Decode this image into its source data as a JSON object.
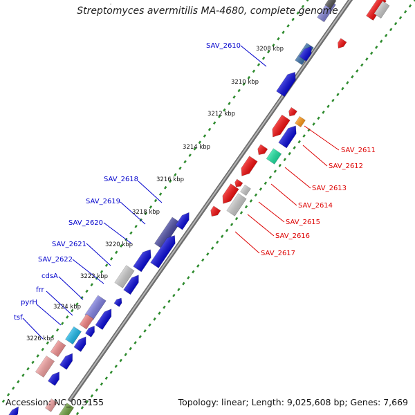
{
  "title": "Streptomyces avermitilis MA-4680, complete genome",
  "accession": "Accession: NC_003155",
  "summary": "Topology: linear; Length: 9,025,608 bp; Genes: 7,669",
  "colors": {
    "backbone": "#8a8a8a",
    "ticks": "#2e8b2e",
    "blue_gene": "#0b0bd6",
    "red_gene": "#f21010",
    "label_blue": "#0000cc",
    "label_red": "#dd0000"
  },
  "ticks": [
    "3208 kbp",
    "3210 kbp",
    "3212 kbp",
    "3214 kbp",
    "3216 kbp",
    "3218 kbp",
    "3220 kbp",
    "3222 kbp",
    "3224 kbp",
    "3226 kbp"
  ],
  "genes_left": [
    "SAV_2610",
    "SAV_2618",
    "SAV_2619",
    "SAV_2620",
    "SAV_2621",
    "SAV_2622",
    "cdsA",
    "frr",
    "pyrH",
    "tsf"
  ],
  "genes_right": [
    "SAV_2611",
    "SAV_2612",
    "SAV_2613",
    "SAV_2614",
    "SAV_2615",
    "SAV_2616",
    "SAV_2617"
  ]
}
